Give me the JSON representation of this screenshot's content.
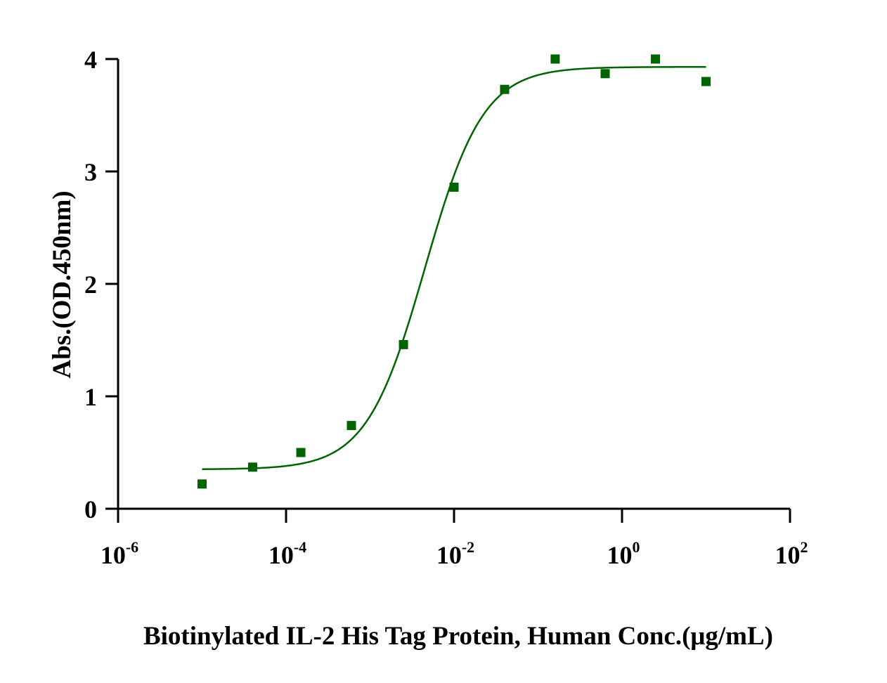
{
  "chart_data": {
    "type": "scatter",
    "title": "",
    "xlabel": "Biotinylated IL-2 His Tag Protein, Human Conc.(μg/mL)",
    "ylabel": "Abs.(OD.450nm)",
    "x_scale": "log10",
    "xlim": [
      1e-06,
      100
    ],
    "ylim": [
      0,
      4
    ],
    "x_ticks": [
      {
        "base": "10",
        "exp": "-6"
      },
      {
        "base": "10",
        "exp": "-4"
      },
      {
        "base": "10",
        "exp": "-2"
      },
      {
        "base": "10",
        "exp": "0"
      },
      {
        "base": "10",
        "exp": "2"
      }
    ],
    "y_ticks": [
      "0",
      "1",
      "2",
      "3",
      "4"
    ],
    "grid": false,
    "legend": "none",
    "series": [
      {
        "color": "#006400",
        "marker": "square",
        "points": [
          {
            "x": 1e-05,
            "y": 0.22
          },
          {
            "x": 4e-05,
            "y": 0.37
          },
          {
            "x": 0.00015,
            "y": 0.5
          },
          {
            "x": 0.0006,
            "y": 0.74
          },
          {
            "x": 0.0025,
            "y": 1.46
          },
          {
            "x": 0.01,
            "y": 2.86
          },
          {
            "x": 0.04,
            "y": 3.73
          },
          {
            "x": 0.16,
            "y": 4.0
          },
          {
            "x": 0.63,
            "y": 3.87
          },
          {
            "x": 2.5,
            "y": 4.0
          },
          {
            "x": 10,
            "y": 3.8
          }
        ],
        "fit": {
          "model": "4PL",
          "bottom": 0.35,
          "top": 3.93,
          "ec50": 0.0045,
          "hill": 1.25,
          "x_range": [
            1e-05,
            10
          ]
        }
      }
    ]
  }
}
